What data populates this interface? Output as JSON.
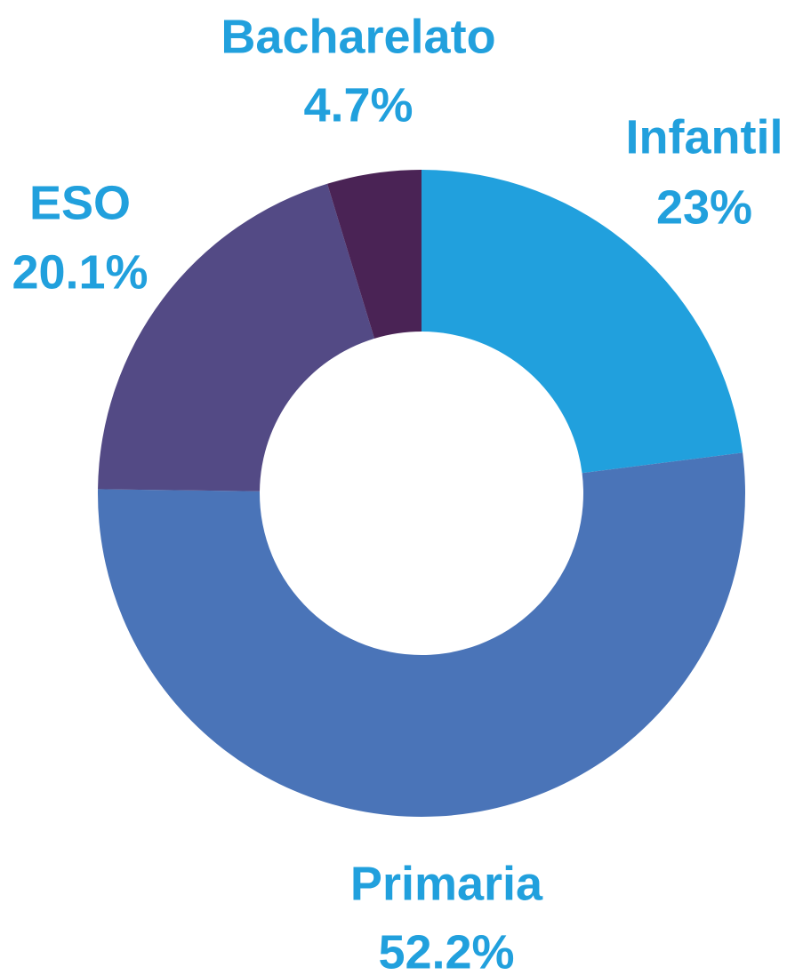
{
  "chart_data": {
    "type": "donut",
    "categories": [
      "Infantil",
      "Primaria",
      "ESO",
      "Bacharelato"
    ],
    "values": [
      23,
      52.2,
      20.1,
      4.7
    ],
    "value_labels": [
      "23%",
      "52.2%",
      "20.1%",
      "4.7%"
    ],
    "colors": [
      "#21a0dd",
      "#4a74b8",
      "#534a85",
      "#4a2355"
    ]
  }
}
